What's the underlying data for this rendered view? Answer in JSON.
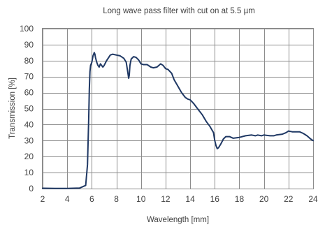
{
  "chart_data": {
    "type": "line",
    "title": "Long wave pass filter with cut on at 5.5 µm",
    "xlabel": "Wavelength [mm]",
    "ylabel": "Transmission [%]",
    "xlim": [
      2,
      24
    ],
    "ylim": [
      0,
      100
    ],
    "x_ticks": [
      2,
      4,
      6,
      8,
      10,
      12,
      14,
      16,
      18,
      20,
      22,
      24
    ],
    "y_ticks": [
      0,
      10,
      20,
      30,
      40,
      50,
      60,
      70,
      80,
      90,
      100
    ],
    "grid": true,
    "legend": "none",
    "series": [
      {
        "color": "#1f3864",
        "x": [
          2.0,
          3.0,
          4.0,
          5.0,
          5.5,
          5.65,
          5.75,
          5.8,
          5.85,
          5.9,
          6.0,
          6.1,
          6.2,
          6.25,
          6.3,
          6.4,
          6.5,
          6.6,
          6.7,
          6.8,
          6.9,
          7.0,
          7.2,
          7.5,
          7.7,
          8.0,
          8.3,
          8.6,
          8.8,
          8.9,
          9.0,
          9.05,
          9.1,
          9.2,
          9.4,
          9.6,
          9.8,
          10.0,
          10.2,
          10.5,
          10.8,
          11.0,
          11.3,
          11.6,
          11.8,
          12.0,
          12.2,
          12.5,
          12.7,
          13.0,
          13.3,
          13.6,
          13.8,
          14.0,
          14.3,
          14.6,
          15.0,
          15.3,
          15.6,
          15.9,
          16.0,
          16.1,
          16.2,
          16.3,
          16.5,
          16.7,
          16.9,
          17.2,
          17.5,
          18.0,
          18.5,
          19.0,
          19.3,
          19.5,
          19.8,
          20.0,
          20.5,
          20.8,
          21.0,
          21.5,
          21.8,
          22.0,
          22.3,
          22.6,
          22.9,
          23.2,
          23.5,
          23.8,
          24.0
        ],
        "y": [
          0.2,
          0.1,
          0.1,
          0.3,
          2,
          15,
          45,
          62,
          73,
          77,
          79,
          83,
          85,
          84,
          82,
          79,
          77,
          76,
          78,
          77,
          76,
          77,
          80,
          83.5,
          84,
          83.5,
          83,
          81.5,
          79,
          74,
          69,
          71,
          77,
          81,
          82.5,
          82,
          80.5,
          78,
          77.5,
          77.5,
          76,
          75.5,
          76,
          78,
          77,
          75,
          74.5,
          72,
          68,
          64,
          60,
          57,
          56,
          55.5,
          53,
          50,
          46,
          42,
          39,
          35,
          30,
          27,
          25,
          25.5,
          28,
          31,
          32.5,
          32.5,
          31.5,
          32,
          33,
          33.5,
          33,
          33.5,
          33,
          33.5,
          33,
          33,
          33.5,
          34,
          35,
          36,
          35.5,
          35.5,
          35.5,
          34.5,
          33,
          31,
          30
        ]
      }
    ]
  }
}
